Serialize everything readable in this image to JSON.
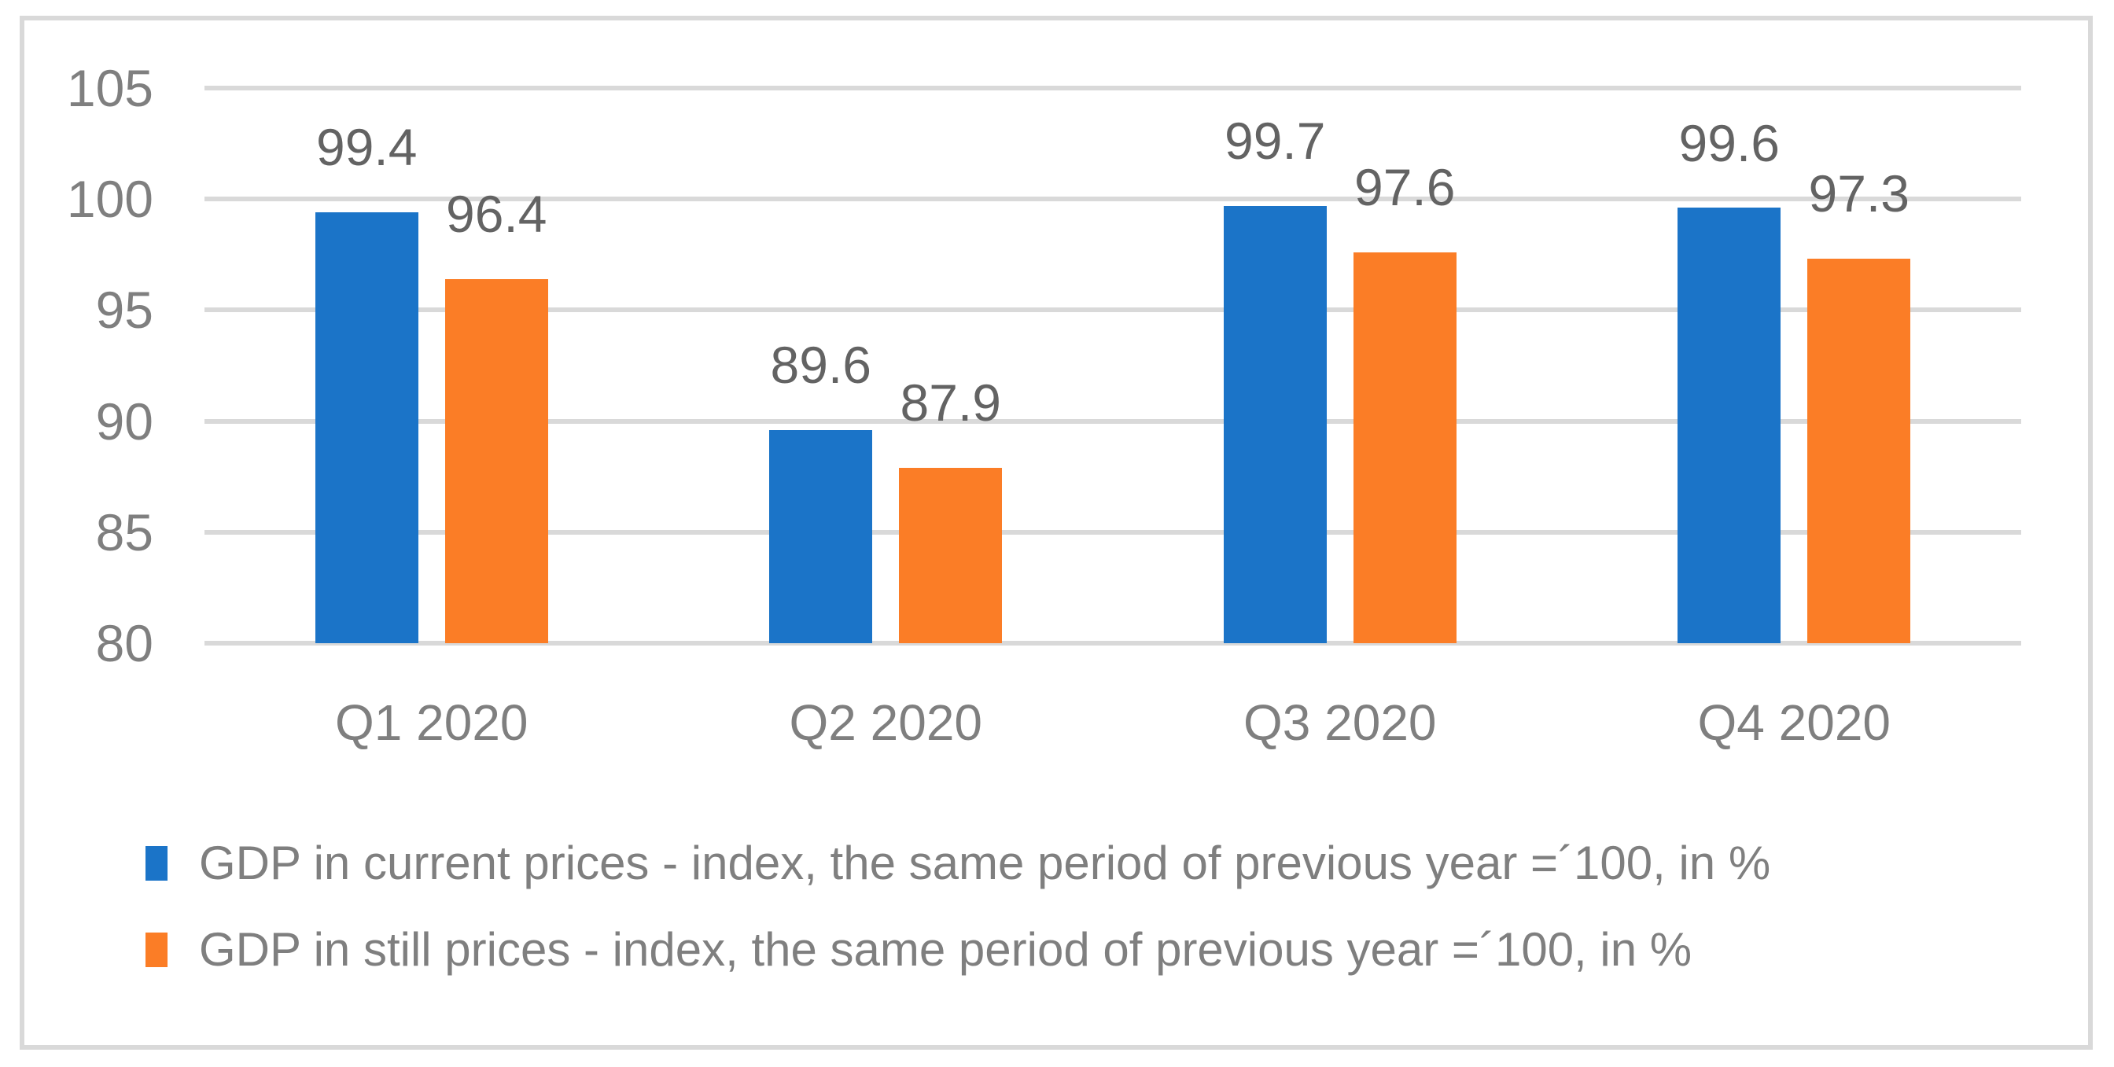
{
  "chart_data": {
    "type": "bar",
    "title": "",
    "xlabel": "",
    "ylabel": "",
    "categories": [
      "Q1 2020",
      "Q2 2020",
      "Q3 2020",
      "Q4 2020"
    ],
    "series": [
      {
        "name": "GDP in current prices - index, the same period of previous year =´100, in %",
        "color": "#1B74C8",
        "values": [
          99.4,
          89.6,
          99.7,
          99.6
        ]
      },
      {
        "name": "GDP in still prices - index, the same period of previous year =´100, in %",
        "color": "#FB7D26",
        "values": [
          96.4,
          87.9,
          97.6,
          97.3
        ]
      }
    ],
    "ylim": [
      80,
      105
    ],
    "yticks": [
      80,
      85,
      90,
      95,
      100,
      105
    ],
    "grid": true,
    "data_labels": true,
    "legend_position": "bottom-left"
  },
  "colors": {
    "background": "#FFFFFF",
    "chart_border": "#D9D9D9",
    "gridline": "#D9D9D9",
    "axis_tick_label": "#7F7F7F",
    "x_axis_label": "#7F7F7F",
    "data_label": "#636363",
    "legend_text": "#7F7F7F"
  }
}
